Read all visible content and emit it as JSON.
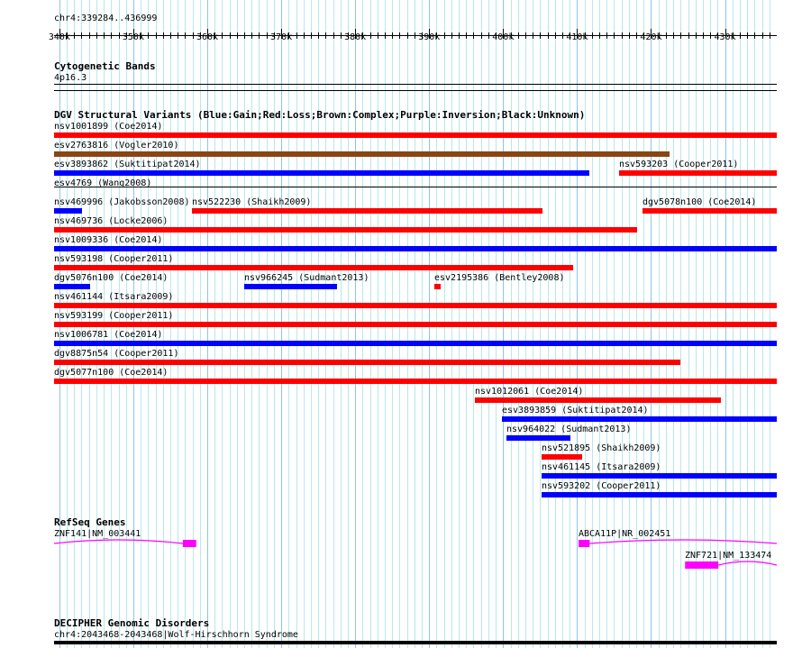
{
  "view": {
    "chrom": "chr4",
    "start": 339284,
    "end": 436999,
    "location_label": "chr4:339284..436999"
  },
  "ruler": {
    "ticks": [
      "340k",
      "350k",
      "360k",
      "370k",
      "380k",
      "390k",
      "400k",
      "410k",
      "420k",
      "430k"
    ]
  },
  "colors": {
    "gain": "#0000ff",
    "loss": "#ff0000",
    "complex": "#8b4513",
    "inversion": "#800080",
    "unknown": "#000000",
    "gene": "#ff00ff",
    "grid_major": "#8cc4ea",
    "grid_minor": "#b6e8ee"
  },
  "cytobands": {
    "title": "Cytogenetic Bands",
    "band": "4p16.3"
  },
  "dgv": {
    "title": "DGV Structural Variants (Blue:Gain;Red:Loss;Brown:Complex;Purple:Inversion;Black:Unknown)",
    "features": [
      {
        "label": "nsv1001899 (Coe2014)",
        "type": "loss",
        "start": 339.284,
        "end": 436.999,
        "row": 0
      },
      {
        "label": "esv2763816 (Vogler2010)",
        "type": "complex",
        "start": 339.284,
        "end": 422.5,
        "row": 1
      },
      {
        "label": "esv3893862 (Suktitipat2014)",
        "type": "gain",
        "start": 339.284,
        "end": 411.7,
        "row": 2
      },
      {
        "label": "nsv593203 (Cooper2011)",
        "type": "loss",
        "start": 415.7,
        "end": 436.999,
        "row": 2
      },
      {
        "label": "esv4769 (Wang2008)",
        "type": "unknown",
        "start": 339.284,
        "end": 436.999,
        "row": 3,
        "thin": true
      },
      {
        "label": "nsv469996 (Jakobsson2008)",
        "type": "gain",
        "start": 339.284,
        "end": 343.06,
        "row": 4
      },
      {
        "label": "nsv522230 (Shaikh2009)",
        "type": "loss",
        "start": 357.9,
        "end": 405.3,
        "row": 4
      },
      {
        "label": "dgv5078n100 (Coe2014)",
        "type": "loss",
        "start": 418.9,
        "end": 436.999,
        "row": 4
      },
      {
        "label": "nsv469736 (Locke2006)",
        "type": "loss",
        "start": 339.284,
        "end": 418.1,
        "row": 5
      },
      {
        "label": "nsv1009336 (Coe2014)",
        "type": "gain",
        "start": 339.284,
        "end": 436.999,
        "row": 6
      },
      {
        "label": "nsv593198 (Cooper2011)",
        "type": "loss",
        "start": 339.284,
        "end": 409.5,
        "row": 7
      },
      {
        "label": "dgv5076n100 (Coe2014)",
        "type": "gain",
        "start": 339.284,
        "end": 344.2,
        "row": 8
      },
      {
        "label": "nsv966245 (Sudmant2013)",
        "type": "gain",
        "start": 365.0,
        "end": 377.5,
        "row": 8
      },
      {
        "label": "esv2195386 (Bentley2008)",
        "type": "loss",
        "start": 390.7,
        "end": 391.6,
        "row": 8
      },
      {
        "label": "nsv461144 (Itsara2009)",
        "type": "loss",
        "start": 339.284,
        "end": 436.999,
        "row": 9
      },
      {
        "label": "nsv593199 (Cooper2011)",
        "type": "loss",
        "start": 339.284,
        "end": 436.999,
        "row": 10
      },
      {
        "label": "nsv1006781 (Coe2014)",
        "type": "gain",
        "start": 339.284,
        "end": 436.999,
        "row": 11
      },
      {
        "label": "dgv8875n54 (Cooper2011)",
        "type": "loss",
        "start": 339.284,
        "end": 424.0,
        "row": 12
      },
      {
        "label": "dgv5077n100 (Coe2014)",
        "type": "loss",
        "start": 339.284,
        "end": 436.999,
        "row": 13
      },
      {
        "label": "nsv1012061 (Coe2014)",
        "type": "loss",
        "start": 396.2,
        "end": 429.5,
        "row": 14
      },
      {
        "label": "esv3893859 (Suktitipat2014)",
        "type": "gain",
        "start": 399.8,
        "end": 436.999,
        "row": 15
      },
      {
        "label": "nsv964022 (Sudmant2013)",
        "type": "gain",
        "start": 400.45,
        "end": 409.1,
        "row": 16
      },
      {
        "label": "nsv521895 (Shaikh2009)",
        "type": "loss",
        "start": 405.2,
        "end": 410.7,
        "row": 17
      },
      {
        "label": "nsv461145 (Itsara2009)",
        "type": "gain",
        "start": 405.2,
        "end": 436.999,
        "row": 18
      },
      {
        "label": "nsv593202 (Cooper2011)",
        "type": "gain",
        "start": 405.2,
        "end": 436.999,
        "row": 19
      }
    ]
  },
  "refseq": {
    "title": "RefSeq Genes",
    "genes": [
      {
        "label": "ZNF141|NM_003441",
        "start": 339.284,
        "end": 358.5,
        "exon": [
          356.7,
          358.5
        ],
        "row": 0
      },
      {
        "label": "ABCA11P|NR_002451",
        "start": 410.2,
        "end": 436.999,
        "exon": [
          410.2,
          411.7
        ],
        "row": 0
      },
      {
        "label": "ZNF721|NM_133474",
        "start": 424.6,
        "end": 436.999,
        "exon": [
          424.6,
          429.1
        ],
        "row": 1
      }
    ]
  },
  "decipher": {
    "title": "DECIPHER Genomic Disorders",
    "feature": "chr4:2043468-2043468|Wolf-Hirschhorn Syndrome"
  }
}
